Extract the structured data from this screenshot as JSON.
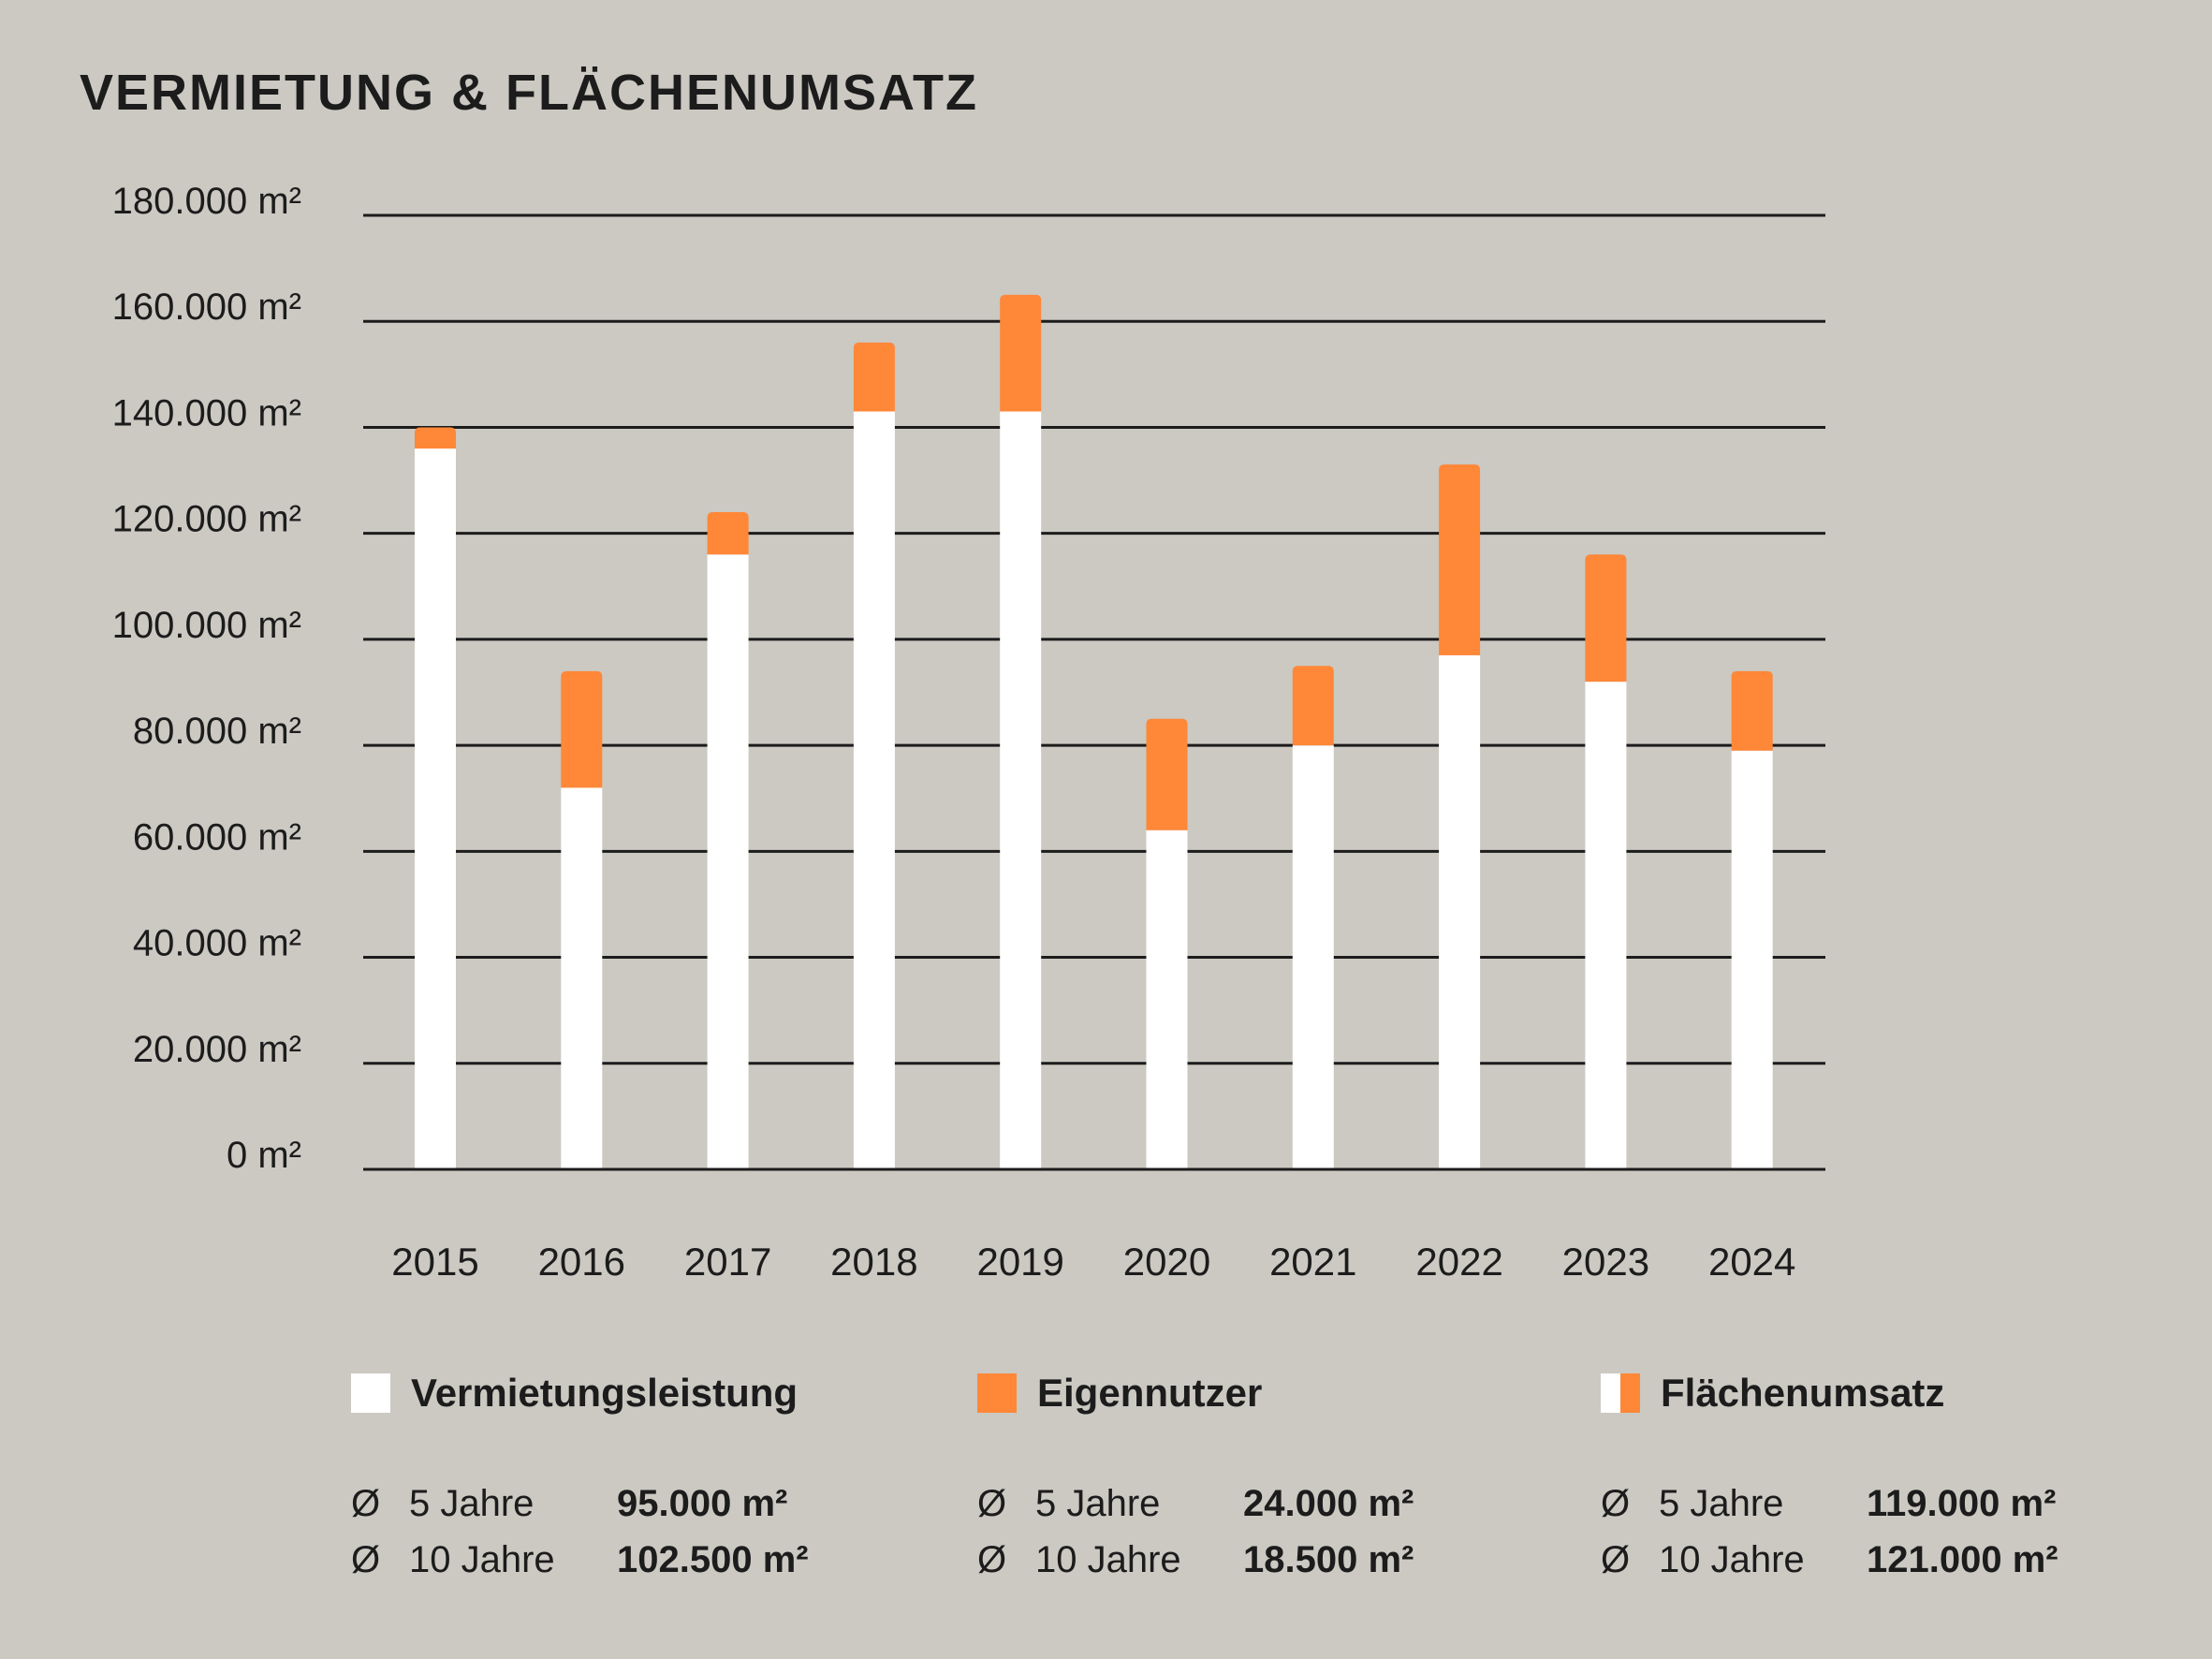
{
  "title": "VERMIETUNG & FLÄCHENUMSATZ",
  "colors": {
    "background": "#cbc9c2",
    "vermietung": "#ffffff",
    "eigennutzer": "#fe8738",
    "grid": "#1c1c1c"
  },
  "chart_data": {
    "type": "bar",
    "stacked": true,
    "title": "VERMIETUNG & FLÄCHENUMSATZ",
    "categories": [
      "2015",
      "2016",
      "2017",
      "2018",
      "2019",
      "2020",
      "2021",
      "2022",
      "2023",
      "2024"
    ],
    "series": [
      {
        "name": "Vermietungsleistung",
        "color": "#ffffff",
        "values": [
          136000,
          72000,
          116000,
          143000,
          143000,
          64000,
          80000,
          97000,
          92000,
          79000
        ]
      },
      {
        "name": "Eigennutzer",
        "color": "#fe8738",
        "values": [
          4000,
          22000,
          8000,
          13000,
          22000,
          21000,
          15000,
          36000,
          24000,
          15000
        ]
      }
    ],
    "ylim": [
      0,
      180000
    ],
    "yticks": [
      "0 m²",
      "20.000 m²",
      "40.000 m²",
      "60.000 m²",
      "80.000 m²",
      "100.000 m²",
      "120.000 m²",
      "140.000 m²",
      "160.000 m²",
      "180.000 m²"
    ],
    "ytick_values": [
      0,
      20000,
      40000,
      60000,
      80000,
      100000,
      120000,
      140000,
      160000,
      180000
    ],
    "grid": true,
    "legend": "bottom"
  },
  "legend": [
    {
      "label": "Vermietungsleistung",
      "swatch": "white",
      "stats": [
        {
          "symbol": "Ø",
          "label": "5 Jahre",
          "value": "95.000 m²"
        },
        {
          "symbol": "Ø",
          "label": "10 Jahre",
          "value": "102.500 m²"
        }
      ]
    },
    {
      "label": "Eigennutzer",
      "swatch": "orange",
      "stats": [
        {
          "symbol": "Ø",
          "label": "5 Jahre",
          "value": "24.000 m²"
        },
        {
          "symbol": "Ø",
          "label": "10 Jahre",
          "value": "18.500 m²"
        }
      ]
    },
    {
      "label": "Flächenumsatz",
      "swatch": "split",
      "stats": [
        {
          "symbol": "Ø",
          "label": "5 Jahre",
          "value": "119.000 m²"
        },
        {
          "symbol": "Ø",
          "label": "10 Jahre",
          "value": "121.000 m²"
        }
      ]
    }
  ]
}
